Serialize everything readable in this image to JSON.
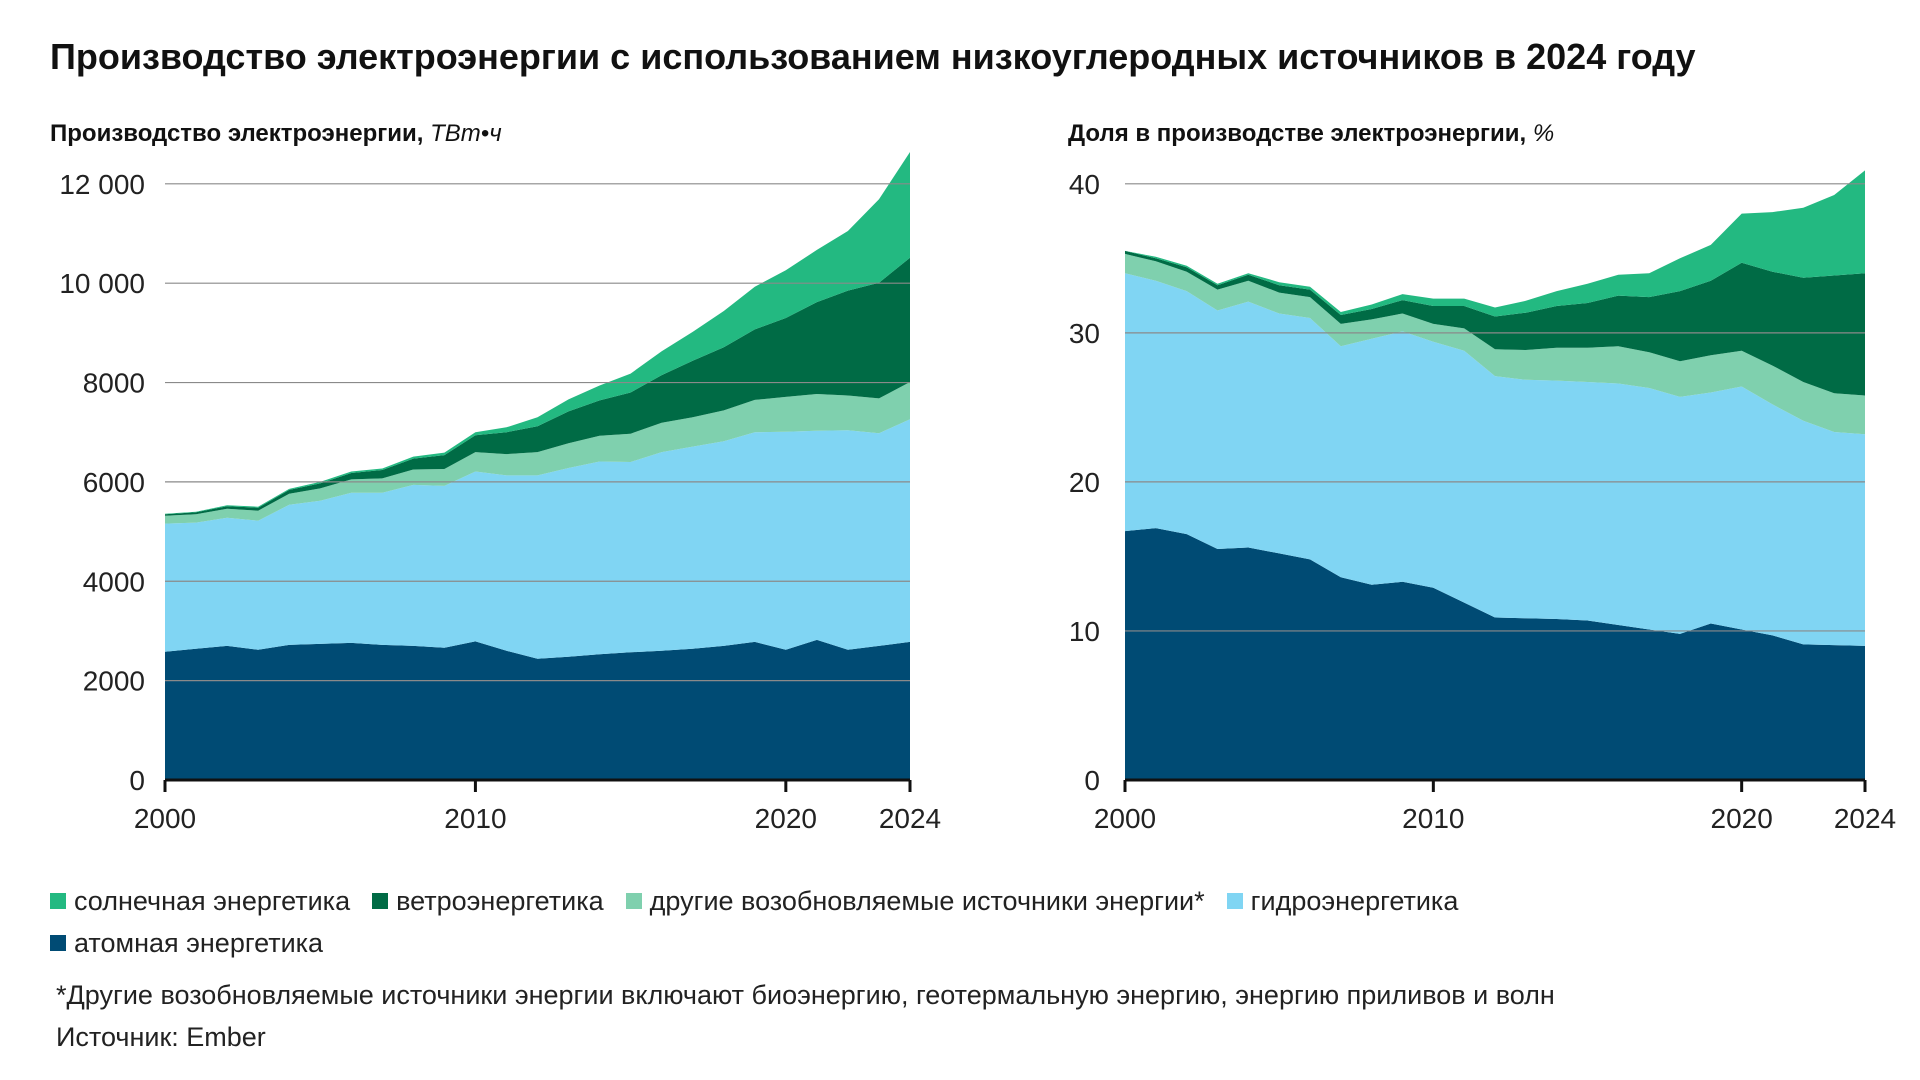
{
  "title": "Производство электроэнергии с использованием низкоуглеродных источников в 2024 году",
  "colors": {
    "solar": "#23b981",
    "wind": "#006b45",
    "other_renewables": "#7fd0ae",
    "hydro": "#80d5f3",
    "nuclear": "#004b74"
  },
  "legend": {
    "solar": "солнечная энергетика",
    "wind": "ветроэнергетика",
    "other_renewables": "другие возобновляемые источники энергии*",
    "hydro": "гидроэнергетика",
    "nuclear": "атомная энергетика"
  },
  "footnote": "*Другие возобновляемые источники энергии включают биоэнергию, геотермальную энергию, энергию приливов и волн",
  "source": "Источник: Ember",
  "chart_data": [
    {
      "type": "area",
      "stacked": true,
      "title": "Производство электроэнергии",
      "unit": "ТВт•ч",
      "x": [
        2000,
        2001,
        2002,
        2003,
        2004,
        2005,
        2006,
        2007,
        2008,
        2009,
        2010,
        2011,
        2012,
        2013,
        2014,
        2015,
        2016,
        2017,
        2018,
        2019,
        2020,
        2021,
        2022,
        2023,
        2024
      ],
      "x_ticks": [
        2000,
        2010,
        2020,
        2024
      ],
      "y_ticks": [
        0,
        2000,
        4000,
        6000,
        8000,
        10000,
        12000
      ],
      "y_tick_labels": [
        "0",
        "2000",
        "4000",
        "6000",
        "8000",
        "10 000",
        "12 000"
      ],
      "ylim": [
        0,
        12600
      ],
      "series": [
        {
          "key": "nuclear",
          "values": [
            2580,
            2640,
            2700,
            2620,
            2720,
            2740,
            2760,
            2720,
            2700,
            2660,
            2790,
            2600,
            2440,
            2480,
            2530,
            2570,
            2600,
            2640,
            2700,
            2780,
            2620,
            2820,
            2620,
            2700,
            2780
          ]
        },
        {
          "key": "hydro",
          "values": [
            2580,
            2540,
            2580,
            2600,
            2820,
            2880,
            3020,
            3060,
            3240,
            3260,
            3420,
            3530,
            3690,
            3800,
            3880,
            3830,
            4000,
            4070,
            4120,
            4220,
            4390,
            4210,
            4420,
            4280,
            4480
          ]
        },
        {
          "key": "other_renewables",
          "values": [
            160,
            170,
            180,
            200,
            220,
            250,
            270,
            290,
            310,
            340,
            390,
            430,
            470,
            500,
            520,
            570,
            590,
            590,
            620,
            650,
            700,
            740,
            700,
            700,
            750
          ]
        },
        {
          "key": "wind",
          "values": [
            30,
            40,
            50,
            60,
            80,
            100,
            130,
            170,
            220,
            280,
            340,
            440,
            520,
            640,
            710,
            830,
            960,
            1140,
            1270,
            1420,
            1590,
            1850,
            2110,
            2330,
            2500
          ]
        },
        {
          "key": "solar",
          "values": [
            10,
            10,
            20,
            20,
            20,
            30,
            30,
            30,
            40,
            50,
            60,
            100,
            180,
            240,
            300,
            380,
            480,
            580,
            730,
            860,
            960,
            1050,
            1200,
            1680,
            2130
          ]
        }
      ]
    },
    {
      "type": "area",
      "stacked": true,
      "title": "Доля в производстве электроэнергии",
      "unit": "%",
      "x": [
        2000,
        2001,
        2002,
        2003,
        2004,
        2005,
        2006,
        2007,
        2008,
        2009,
        2010,
        2011,
        2012,
        2013,
        2014,
        2015,
        2016,
        2017,
        2018,
        2019,
        2020,
        2021,
        2022,
        2023,
        2024
      ],
      "x_ticks": [
        2000,
        2010,
        2020,
        2024
      ],
      "y_ticks": [
        0,
        10,
        20,
        30,
        40
      ],
      "y_tick_labels": [
        "0",
        "10",
        "20",
        "30",
        "40"
      ],
      "ylim": [
        0,
        42
      ],
      "series": [
        {
          "key": "nuclear",
          "values": [
            16.7,
            16.9,
            16.5,
            15.5,
            15.6,
            15.2,
            14.8,
            13.6,
            13.1,
            13.3,
            12.9,
            11.9,
            10.9,
            10.85,
            10.8,
            10.7,
            10.4,
            10.1,
            9.8,
            10.5,
            10.1,
            9.7,
            9.1,
            9.05,
            9.0
          ]
        },
        {
          "key": "hydro",
          "values": [
            17.3,
            16.6,
            16.3,
            16.0,
            16.5,
            16.1,
            16.2,
            15.5,
            16.5,
            16.8,
            16.5,
            16.9,
            16.2,
            16.0,
            16.0,
            16.0,
            16.2,
            16.2,
            15.9,
            15.5,
            16.3,
            15.5,
            15.0,
            14.3,
            14.2
          ]
        },
        {
          "key": "other_renewables",
          "values": [
            1.3,
            1.3,
            1.3,
            1.4,
            1.4,
            1.4,
            1.4,
            1.5,
            1.3,
            1.2,
            1.2,
            1.5,
            1.8,
            2.0,
            2.2,
            2.3,
            2.5,
            2.4,
            2.4,
            2.5,
            2.4,
            2.6,
            2.6,
            2.6,
            2.6
          ]
        },
        {
          "key": "wind",
          "values": [
            0.2,
            0.2,
            0.3,
            0.3,
            0.4,
            0.5,
            0.5,
            0.6,
            0.7,
            0.9,
            1.2,
            1.5,
            2.2,
            2.5,
            2.8,
            3.0,
            3.4,
            3.7,
            4.7,
            5.0,
            5.9,
            6.3,
            7.0,
            7.9,
            8.2
          ]
        },
        {
          "key": "solar",
          "values": [
            0.0,
            0.1,
            0.1,
            0.1,
            0.1,
            0.2,
            0.2,
            0.2,
            0.3,
            0.4,
            0.5,
            0.5,
            0.6,
            0.8,
            1.0,
            1.3,
            1.4,
            1.6,
            2.2,
            2.4,
            3.3,
            4.0,
            4.7,
            5.4,
            6.9
          ]
        }
      ]
    }
  ]
}
